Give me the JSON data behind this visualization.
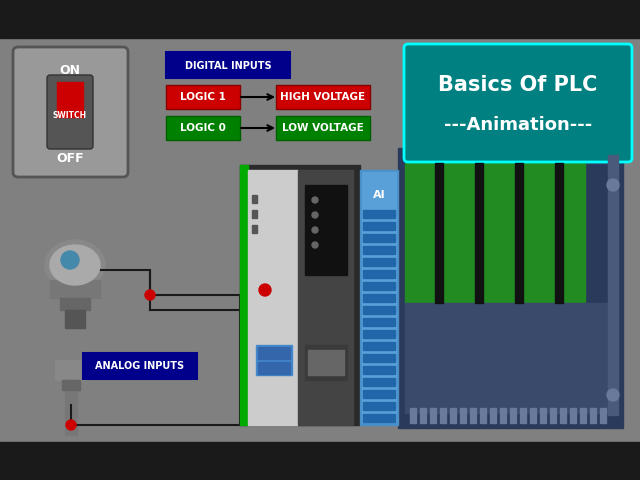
{
  "bg_color": "#808080",
  "black_bar_color": "#1a1a1a",
  "title_box_color": "#008080",
  "title_text": "Basics Of PLC",
  "subtitle_text": "---Animation---",
  "title_text_color": "#ffffff",
  "digital_inputs_label": "DIGITAL INPUTS",
  "digital_inputs_label_color": "#00008b",
  "logic1_label": "LOGIC 1",
  "logic1_bg": "#cc0000",
  "logic0_label": "LOGIC 0",
  "logic0_bg": "#008000",
  "high_voltage_label": "HIGH VOLTAGE",
  "high_voltage_bg": "#cc0000",
  "low_voltage_label": "LOW VOLTAGE",
  "low_voltage_bg": "#008000",
  "analog_inputs_label": "ANALOG INPUTS",
  "analog_inputs_bg": "#00008b",
  "wire_color": "#1a1a1a",
  "dot_color": "#cc0000",
  "plc_main_color": "#2a2a2a",
  "plc_light_color": "#3a3a3a",
  "plc_green_stripe": "#00aa00",
  "plc_white_panel": "#e8e8e8",
  "backplane_color": "#2a3a5a",
  "backplane_green": "#228b22",
  "ai_label": "AI",
  "ai_module_color": "#4a90c8",
  "switch_bg": "#888888",
  "switch_on_text": "ON",
  "switch_off_text": "OFF",
  "switch_label": "SWITCH"
}
